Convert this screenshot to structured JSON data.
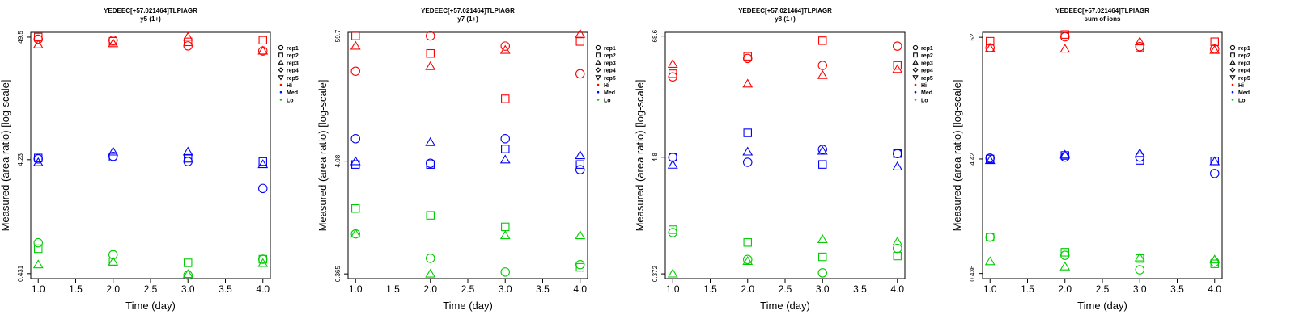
{
  "figure": {
    "description_none": ""
  },
  "chart_data": [
    {
      "type": "scatter",
      "title": "YEDEEC[+57.021464]TLPIAGR",
      "subtitle": "y5 (1+)",
      "xlabel": "Time (day)",
      "ylabel": "Measured (area ratio) [log-scale]",
      "xlim": [
        0.9,
        4.1
      ],
      "xticks": [
        1.0,
        1.5,
        2.0,
        2.5,
        3.0,
        3.5,
        4.0
      ],
      "xtick_labels": [
        "1.0",
        "1.5",
        "2.0",
        "2.5",
        "3.0",
        "3.5",
        "4.0"
      ],
      "ylim": [
        0.39,
        54.5
      ],
      "yticks": [
        0.431,
        4.23,
        49.5
      ],
      "ytick_labels": [
        "0.431",
        "4.23",
        "49.5"
      ],
      "legend": [
        "rep1",
        "rep2",
        "rep3",
        "rep4",
        "rep5",
        "Hi",
        "Med",
        "Lo"
      ],
      "legend_placement": "right-outside",
      "series": [
        {
          "name": "Hi",
          "color": "#ff0000",
          "points": [
            {
              "x": 1,
              "y": 47.5,
              "rep": "rep1"
            },
            {
              "x": 1,
              "y": 49.5,
              "rep": "rep2"
            },
            {
              "x": 1,
              "y": 42.5,
              "rep": "rep3"
            },
            {
              "x": 2,
              "y": 46.5,
              "rep": "rep1"
            },
            {
              "x": 2,
              "y": 45.5,
              "rep": "rep2"
            },
            {
              "x": 2,
              "y": 43.5,
              "rep": "rep3"
            },
            {
              "x": 3,
              "y": 41.5,
              "rep": "rep1"
            },
            {
              "x": 3,
              "y": 45.0,
              "rep": "rep2"
            },
            {
              "x": 3,
              "y": 49.5,
              "rep": "rep3"
            },
            {
              "x": 4,
              "y": 37.5,
              "rep": "rep1"
            },
            {
              "x": 4,
              "y": 46.5,
              "rep": "rep2"
            },
            {
              "x": 4,
              "y": 37.5,
              "rep": "rep3"
            }
          ]
        },
        {
          "name": "Med",
          "color": "#0000ff",
          "points": [
            {
              "x": 1,
              "y": 4.3,
              "rep": "rep1"
            },
            {
              "x": 1,
              "y": 4.38,
              "rep": "rep2"
            },
            {
              "x": 1,
              "y": 4.0,
              "rep": "rep3"
            },
            {
              "x": 2,
              "y": 4.52,
              "rep": "rep1"
            },
            {
              "x": 2,
              "y": 4.45,
              "rep": "rep2"
            },
            {
              "x": 2,
              "y": 4.95,
              "rep": "rep3"
            },
            {
              "x": 3,
              "y": 4.08,
              "rep": "rep1"
            },
            {
              "x": 3,
              "y": 4.35,
              "rep": "rep2"
            },
            {
              "x": 3,
              "y": 4.95,
              "rep": "rep3"
            },
            {
              "x": 4,
              "y": 2.38,
              "rep": "rep1"
            },
            {
              "x": 4,
              "y": 4.08,
              "rep": "rep2"
            },
            {
              "x": 4,
              "y": 3.85,
              "rep": "rep3"
            }
          ]
        },
        {
          "name": "Lo",
          "color": "#00cc00",
          "points": [
            {
              "x": 1,
              "y": 0.8,
              "rep": "rep1"
            },
            {
              "x": 1,
              "y": 0.71,
              "rep": "rep2"
            },
            {
              "x": 1,
              "y": 0.515,
              "rep": "rep3"
            },
            {
              "x": 2,
              "y": 0.63,
              "rep": "rep1"
            },
            {
              "x": 2,
              "y": 0.545,
              "rep": "rep2"
            },
            {
              "x": 2,
              "y": 0.545,
              "rep": "rep3"
            },
            {
              "x": 3,
              "y": 0.418,
              "rep": "rep1"
            },
            {
              "x": 3,
              "y": 0.535,
              "rep": "rep2"
            },
            {
              "x": 3,
              "y": 0.425,
              "rep": "rep3"
            },
            {
              "x": 4,
              "y": 0.575,
              "rep": "rep1"
            },
            {
              "x": 4,
              "y": 0.575,
              "rep": "rep2"
            },
            {
              "x": 4,
              "y": 0.53,
              "rep": "rep3"
            }
          ]
        }
      ]
    },
    {
      "type": "scatter",
      "title": "YEDEEC[+57.021464]TLPIAGR",
      "subtitle": "y7 (1+)",
      "xlabel": "Time (day)",
      "ylabel": "Measured (area ratio) [log-scale]",
      "xlim": [
        0.9,
        4.1
      ],
      "xticks": [
        1.0,
        1.5,
        2.0,
        2.5,
        3.0,
        3.5,
        4.0
      ],
      "xtick_labels": [
        "1.0",
        "1.5",
        "2.0",
        "2.5",
        "3.0",
        "3.5",
        "4.0"
      ],
      "ylim": [
        0.33,
        64.5
      ],
      "yticks": [
        0.365,
        4.08,
        59.7
      ],
      "ytick_labels": [
        "0.365",
        "4.08",
        "59.7"
      ],
      "legend": [
        "rep1",
        "rep2",
        "rep3",
        "rep4",
        "rep5",
        "Hi",
        "Med",
        "Lo"
      ],
      "legend_placement": "right-outside",
      "series": [
        {
          "name": "Hi",
          "color": "#ff0000",
          "points": [
            {
              "x": 1,
              "y": 28.0,
              "rep": "rep1"
            },
            {
              "x": 1,
              "y": 59.7,
              "rep": "rep2"
            },
            {
              "x": 1,
              "y": 48.0,
              "rep": "rep3"
            },
            {
              "x": 2,
              "y": 59.7,
              "rep": "rep1"
            },
            {
              "x": 2,
              "y": 41.0,
              "rep": "rep2"
            },
            {
              "x": 2,
              "y": 31.0,
              "rep": "rep3"
            },
            {
              "x": 3,
              "y": 48.0,
              "rep": "rep1"
            },
            {
              "x": 3,
              "y": 15.5,
              "rep": "rep2"
            },
            {
              "x": 3,
              "y": 44.0,
              "rep": "rep3"
            },
            {
              "x": 4,
              "y": 26.5,
              "rep": "rep1"
            },
            {
              "x": 4,
              "y": 53.0,
              "rep": "rep2"
            },
            {
              "x": 4,
              "y": 62.0,
              "rep": "rep3"
            }
          ]
        },
        {
          "name": "Med",
          "color": "#0000ff",
          "points": [
            {
              "x": 1,
              "y": 6.6,
              "rep": "rep1"
            },
            {
              "x": 1,
              "y": 3.8,
              "rep": "rep2"
            },
            {
              "x": 1,
              "y": 4.05,
              "rep": "rep3"
            },
            {
              "x": 2,
              "y": 3.9,
              "rep": "rep1"
            },
            {
              "x": 2,
              "y": 3.8,
              "rep": "rep2"
            },
            {
              "x": 2,
              "y": 6.1,
              "rep": "rep3"
            },
            {
              "x": 3,
              "y": 6.6,
              "rep": "rep1"
            },
            {
              "x": 3,
              "y": 5.3,
              "rep": "rep2"
            },
            {
              "x": 3,
              "y": 4.2,
              "rep": "rep3"
            },
            {
              "x": 4,
              "y": 3.4,
              "rep": "rep1"
            },
            {
              "x": 4,
              "y": 3.8,
              "rep": "rep2"
            },
            {
              "x": 4,
              "y": 4.6,
              "rep": "rep3"
            }
          ]
        },
        {
          "name": "Lo",
          "color": "#00cc00",
          "points": [
            {
              "x": 1,
              "y": 0.86,
              "rep": "rep1"
            },
            {
              "x": 1,
              "y": 1.48,
              "rep": "rep2"
            },
            {
              "x": 1,
              "y": 0.86,
              "rep": "rep3"
            },
            {
              "x": 2,
              "y": 0.51,
              "rep": "rep1"
            },
            {
              "x": 2,
              "y": 1.28,
              "rep": "rep2"
            },
            {
              "x": 2,
              "y": 0.365,
              "rep": "rep3"
            },
            {
              "x": 3,
              "y": 0.38,
              "rep": "rep1"
            },
            {
              "x": 3,
              "y": 1.0,
              "rep": "rep2"
            },
            {
              "x": 3,
              "y": 0.83,
              "rep": "rep3"
            },
            {
              "x": 4,
              "y": 0.445,
              "rep": "rep1"
            },
            {
              "x": 4,
              "y": 0.42,
              "rep": "rep2"
            },
            {
              "x": 4,
              "y": 0.83,
              "rep": "rep3"
            }
          ]
        }
      ]
    },
    {
      "type": "scatter",
      "title": "YEDEEC[+57.021464]TLPIAGR",
      "subtitle": "y8 (1+)",
      "xlabel": "Time (day)",
      "ylabel": "Measured (area ratio) [log-scale]",
      "xlim": [
        0.9,
        4.1
      ],
      "xticks": [
        1.0,
        1.5,
        2.0,
        2.5,
        3.0,
        3.5,
        4.0
      ],
      "xtick_labels": [
        "1.0",
        "1.5",
        "2.0",
        "2.5",
        "3.0",
        "3.5",
        "4.0"
      ],
      "ylim": [
        0.335,
        74.5
      ],
      "yticks": [
        0.372,
        4.8,
        68.6
      ],
      "ytick_labels": [
        "0.372",
        "4.8",
        "68.6"
      ],
      "legend": [
        "rep1",
        "rep2",
        "rep3",
        "rep4",
        "rep5",
        "Hi",
        "Med",
        "Lo"
      ],
      "legend_placement": "right-outside",
      "series": [
        {
          "name": "Hi",
          "color": "#ff0000",
          "points": [
            {
              "x": 1,
              "y": 28.0,
              "rep": "rep1"
            },
            {
              "x": 1,
              "y": 30.0,
              "rep": "rep2"
            },
            {
              "x": 1,
              "y": 37.0,
              "rep": "rep3"
            },
            {
              "x": 2,
              "y": 42.0,
              "rep": "rep1"
            },
            {
              "x": 2,
              "y": 44.0,
              "rep": "rep2"
            },
            {
              "x": 2,
              "y": 24.0,
              "rep": "rep3"
            },
            {
              "x": 3,
              "y": 36.0,
              "rep": "rep1"
            },
            {
              "x": 3,
              "y": 62.0,
              "rep": "rep2"
            },
            {
              "x": 3,
              "y": 29.0,
              "rep": "rep3"
            },
            {
              "x": 4,
              "y": 55.0,
              "rep": "rep1"
            },
            {
              "x": 4,
              "y": 36.0,
              "rep": "rep2"
            },
            {
              "x": 4,
              "y": 33.0,
              "rep": "rep3"
            }
          ]
        },
        {
          "name": "Med",
          "color": "#0000ff",
          "points": [
            {
              "x": 1,
              "y": 4.8,
              "rep": "rep1"
            },
            {
              "x": 1,
              "y": 4.8,
              "rep": "rep2"
            },
            {
              "x": 1,
              "y": 4.05,
              "rep": "rep3"
            },
            {
              "x": 2,
              "y": 4.3,
              "rep": "rep1"
            },
            {
              "x": 2,
              "y": 8.2,
              "rep": "rep2"
            },
            {
              "x": 2,
              "y": 5.4,
              "rep": "rep3"
            },
            {
              "x": 3,
              "y": 5.7,
              "rep": "rep1"
            },
            {
              "x": 3,
              "y": 4.1,
              "rep": "rep2"
            },
            {
              "x": 3,
              "y": 5.5,
              "rep": "rep3"
            },
            {
              "x": 4,
              "y": 5.2,
              "rep": "rep1"
            },
            {
              "x": 4,
              "y": 5.2,
              "rep": "rep2"
            },
            {
              "x": 4,
              "y": 3.9,
              "rep": "rep3"
            }
          ]
        },
        {
          "name": "Lo",
          "color": "#00cc00",
          "points": [
            {
              "x": 1,
              "y": 0.92,
              "rep": "rep1"
            },
            {
              "x": 1,
              "y": 0.98,
              "rep": "rep2"
            },
            {
              "x": 1,
              "y": 0.372,
              "rep": "rep3"
            },
            {
              "x": 2,
              "y": 0.51,
              "rep": "rep1"
            },
            {
              "x": 2,
              "y": 0.74,
              "rep": "rep2"
            },
            {
              "x": 2,
              "y": 0.49,
              "rep": "rep3"
            },
            {
              "x": 3,
              "y": 0.38,
              "rep": "rep1"
            },
            {
              "x": 3,
              "y": 0.54,
              "rep": "rep2"
            },
            {
              "x": 3,
              "y": 0.79,
              "rep": "rep3"
            },
            {
              "x": 4,
              "y": 0.65,
              "rep": "rep1"
            },
            {
              "x": 4,
              "y": 0.55,
              "rep": "rep2"
            },
            {
              "x": 4,
              "y": 0.75,
              "rep": "rep3"
            }
          ]
        }
      ]
    },
    {
      "type": "scatter",
      "title": "YEDEEC[+57.021464]TLPIAGR",
      "subtitle": "sum of ions",
      "xlabel": "Time (day)",
      "ylabel": "Measured (area ratio) [log-scale]",
      "xlim": [
        0.9,
        4.1
      ],
      "xticks": [
        1.0,
        1.5,
        2.0,
        2.5,
        3.0,
        3.5,
        4.0
      ],
      "xtick_labels": [
        "1.0",
        "1.5",
        "2.0",
        "2.5",
        "3.0",
        "3.5",
        "4.0"
      ],
      "ylim": [
        0.393,
        57.5
      ],
      "yticks": [
        0.436,
        4.42,
        52
      ],
      "ytick_labels": [
        "0.436",
        "4.42",
        "52"
      ],
      "legend": [
        "rep1",
        "rep2",
        "rep3",
        "rep4",
        "rep5",
        "Hi",
        "Med",
        "Lo"
      ],
      "legend_placement": "right-outside",
      "series": [
        {
          "name": "Hi",
          "color": "#ff0000",
          "points": [
            {
              "x": 1,
              "y": 42.0,
              "rep": "rep1"
            },
            {
              "x": 1,
              "y": 48.0,
              "rep": "rep2"
            },
            {
              "x": 1,
              "y": 41.5,
              "rep": "rep3"
            },
            {
              "x": 2,
              "y": 52.5,
              "rep": "rep1"
            },
            {
              "x": 2,
              "y": 55.0,
              "rep": "rep2"
            },
            {
              "x": 2,
              "y": 41.0,
              "rep": "rep3"
            },
            {
              "x": 3,
              "y": 43.0,
              "rep": "rep1"
            },
            {
              "x": 3,
              "y": 42.0,
              "rep": "rep2"
            },
            {
              "x": 3,
              "y": 47.5,
              "rep": "rep3"
            },
            {
              "x": 4,
              "y": 41.0,
              "rep": "rep1"
            },
            {
              "x": 4,
              "y": 47.5,
              "rep": "rep2"
            },
            {
              "x": 4,
              "y": 40.0,
              "rep": "rep3"
            }
          ]
        },
        {
          "name": "Med",
          "color": "#0000ff",
          "points": [
            {
              "x": 1,
              "y": 4.5,
              "rep": "rep1"
            },
            {
              "x": 1,
              "y": 4.42,
              "rep": "rep2"
            },
            {
              "x": 1,
              "y": 4.3,
              "rep": "rep3"
            },
            {
              "x": 2,
              "y": 4.6,
              "rep": "rep1"
            },
            {
              "x": 2,
              "y": 4.75,
              "rep": "rep2"
            },
            {
              "x": 2,
              "y": 4.8,
              "rep": "rep3"
            },
            {
              "x": 3,
              "y": 4.6,
              "rep": "rep1"
            },
            {
              "x": 3,
              "y": 4.3,
              "rep": "rep2"
            },
            {
              "x": 3,
              "y": 4.95,
              "rep": "rep3"
            },
            {
              "x": 4,
              "y": 3.3,
              "rep": "rep1"
            },
            {
              "x": 4,
              "y": 4.25,
              "rep": "rep2"
            },
            {
              "x": 4,
              "y": 4.2,
              "rep": "rep3"
            }
          ]
        },
        {
          "name": "Lo",
          "color": "#00cc00",
          "points": [
            {
              "x": 1,
              "y": 0.91,
              "rep": "rep1"
            },
            {
              "x": 1,
              "y": 0.91,
              "rep": "rep2"
            },
            {
              "x": 1,
              "y": 0.555,
              "rep": "rep3"
            },
            {
              "x": 2,
              "y": 0.63,
              "rep": "rep1"
            },
            {
              "x": 2,
              "y": 0.67,
              "rep": "rep2"
            },
            {
              "x": 2,
              "y": 0.5,
              "rep": "rep3"
            },
            {
              "x": 3,
              "y": 0.47,
              "rep": "rep1"
            },
            {
              "x": 3,
              "y": 0.59,
              "rep": "rep2"
            },
            {
              "x": 3,
              "y": 0.6,
              "rep": "rep3"
            },
            {
              "x": 4,
              "y": 0.55,
              "rep": "rep1"
            },
            {
              "x": 4,
              "y": 0.53,
              "rep": "rep2"
            },
            {
              "x": 4,
              "y": 0.575,
              "rep": "rep3"
            }
          ]
        }
      ]
    }
  ]
}
